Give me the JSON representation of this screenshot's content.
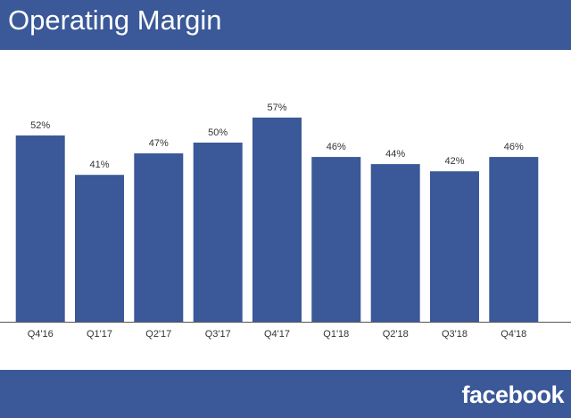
{
  "header": {
    "title": "Operating Margin"
  },
  "footer": {
    "brand": "facebook"
  },
  "colors": {
    "brand_blue": "#3b5998",
    "bar": "#3b5998",
    "label_text": "#333333"
  },
  "chart_data": {
    "type": "bar",
    "title": "Operating Margin",
    "xlabel": "",
    "ylabel": "",
    "ylim": [
      0,
      60
    ],
    "grid": false,
    "legend": "none",
    "value_suffix": "%",
    "categories": [
      "Q4'16",
      "Q1'17",
      "Q2'17",
      "Q3'17",
      "Q4'17",
      "Q1'18",
      "Q2'18",
      "Q3'18",
      "Q4'18"
    ],
    "values": [
      52,
      41,
      47,
      50,
      57,
      46,
      44,
      42,
      46
    ],
    "data_labels": [
      "52%",
      "41%",
      "47%",
      "50%",
      "57%",
      "46%",
      "44%",
      "42%",
      "46%"
    ]
  }
}
